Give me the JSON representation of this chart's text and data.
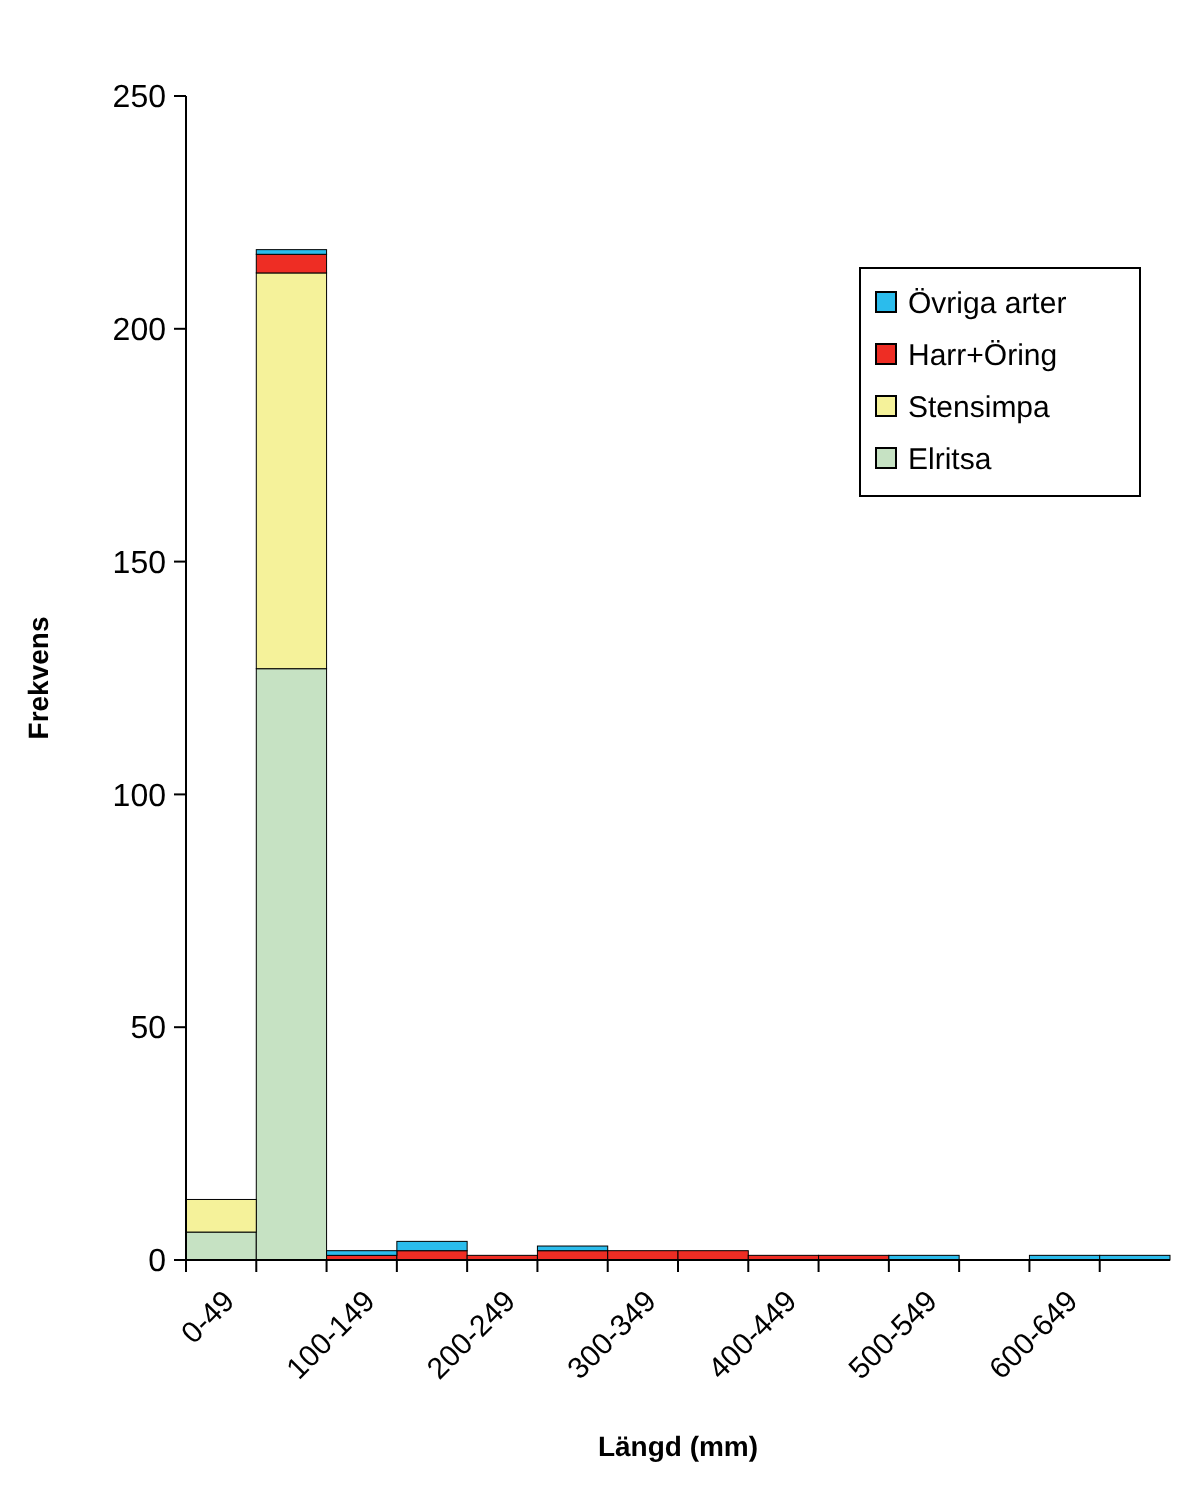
{
  "chart_data": {
    "type": "bar",
    "stacked": true,
    "xlabel": "Längd (mm)",
    "ylabel": "Frekvens",
    "categories": [
      "0-49",
      null,
      "100-149",
      null,
      "200-249",
      null,
      "300-349",
      null,
      "400-449",
      null,
      "500-549",
      null,
      "600-649",
      null
    ],
    "series": [
      {
        "name": "Elritsa",
        "color": "#c6e2c3",
        "values": [
          6,
          127,
          0,
          0,
          0,
          0,
          0,
          0,
          0,
          0,
          0,
          0,
          0,
          0
        ]
      },
      {
        "name": "Stensimpa",
        "color": "#f5f29a",
        "values": [
          7,
          85,
          0,
          0,
          0,
          0,
          0,
          0,
          0,
          0,
          0,
          0,
          0,
          0
        ]
      },
      {
        "name": "Harr+Öring",
        "color": "#ee2d24",
        "values": [
          0,
          4,
          1,
          2,
          1,
          2,
          2,
          2,
          1,
          1,
          0,
          0,
          0,
          0
        ]
      },
      {
        "name": "Övriga arter",
        "color": "#2bbcec",
        "values": [
          0,
          1,
          1,
          2,
          0,
          1,
          0,
          0,
          0,
          0,
          1,
          0,
          1,
          1
        ]
      }
    ],
    "ylim": [
      0,
      250
    ],
    "yticks": [
      0,
      50,
      100,
      150,
      200,
      250
    ],
    "grid": false,
    "legend": "top right"
  }
}
